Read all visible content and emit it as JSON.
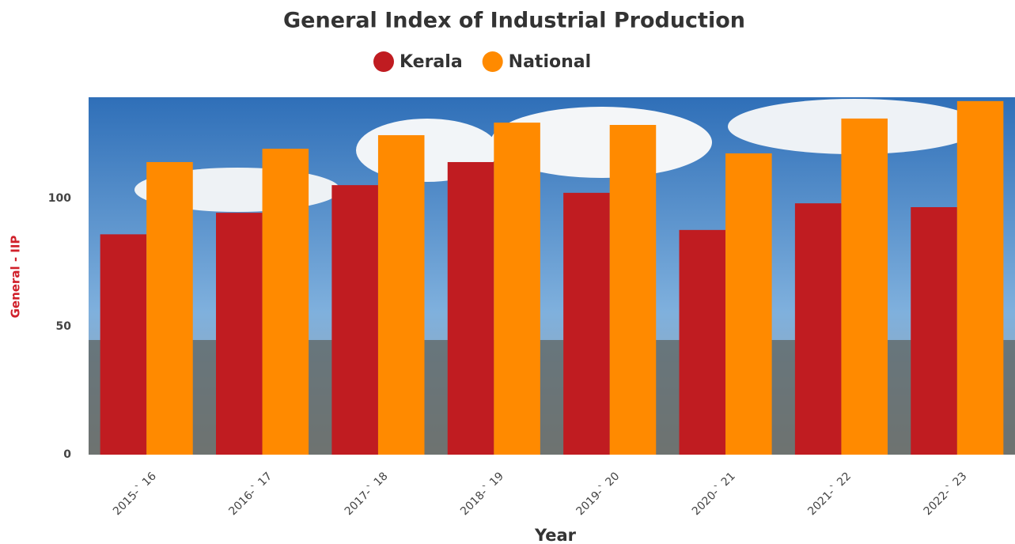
{
  "chart_data": {
    "type": "bar",
    "title": "General Index of Industrial Production",
    "x_label": "Year",
    "y_label": "General - IIP",
    "categories": [
      "2015-` 16",
      "2016-` 17",
      "2017-` 18",
      "2018-` 19",
      "2019-` 20",
      "2020-` 21",
      "2021-` 22",
      "2022-` 23"
    ],
    "series": [
      {
        "name": "Kerala",
        "color": "#c01c21",
        "values": [
          86,
          94.4,
          105.2,
          114.2,
          102.2,
          87.7,
          98.1,
          96.6
        ]
      },
      {
        "name": "National",
        "color": "#ff8a00",
        "values": [
          114.2,
          119.4,
          124.7,
          129.6,
          128.7,
          117.6,
          131.2,
          138
        ]
      }
    ],
    "ylim": [
      0,
      139.5
    ],
    "yticks": [
      0,
      50,
      100
    ],
    "y_label_color": "#d0202a"
  }
}
